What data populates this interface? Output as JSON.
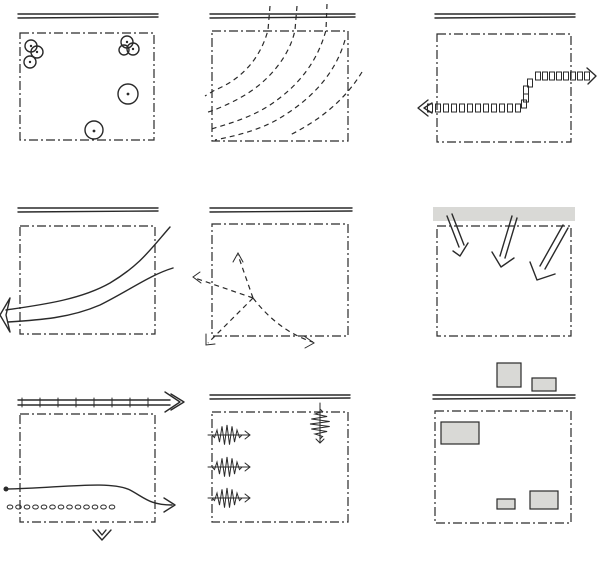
{
  "panels": [
    {
      "id": "trees"
    },
    {
      "id": "contours"
    },
    {
      "id": "path-arrow"
    },
    {
      "id": "flow-curve"
    },
    {
      "id": "radiating-paths"
    },
    {
      "id": "sun-angles"
    },
    {
      "id": "border-arrows"
    },
    {
      "id": "noise-waves"
    },
    {
      "id": "grey-blocks"
    }
  ],
  "colors": {
    "ink": "#2a2a2a",
    "fill": "#d9d9d6",
    "background": "#ffffff"
  }
}
